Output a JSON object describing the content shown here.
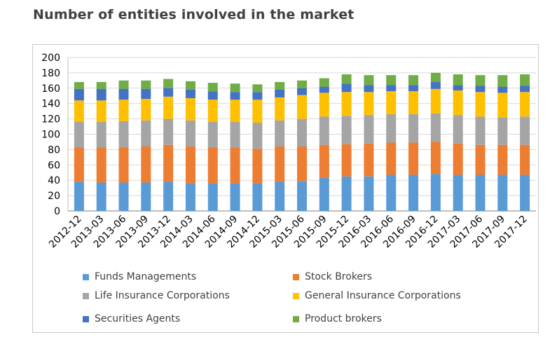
{
  "title": "Number of entities involved in the market",
  "chart_data": {
    "type": "bar",
    "stacked": true,
    "categories": [
      "2012-12",
      "2013-03",
      "2013-06",
      "2013-09",
      "2013-12",
      "2014-03",
      "2014-06",
      "2014-09",
      "2014-12",
      "2015-03",
      "2015-06",
      "2015-09",
      "2015-12",
      "2016-03",
      "2016-06",
      "2016-09",
      "2016-12",
      "2017-03",
      "2017-06",
      "2017-09",
      "2017-12"
    ],
    "ylim": [
      0,
      200
    ],
    "yticks": [
      0,
      20,
      40,
      60,
      80,
      100,
      120,
      140,
      160,
      180,
      200
    ],
    "grid": true,
    "legend_position": "bottom",
    "series": [
      {
        "name": "Funds Managements",
        "color": "#5b9bd5",
        "values": [
          38,
          37,
          37,
          37,
          38,
          36,
          36,
          36,
          36,
          38,
          39,
          43,
          45,
          45,
          47,
          47,
          48,
          47,
          47,
          47,
          47
        ]
      },
      {
        "name": "Stock Brokers",
        "color": "#ed7d31",
        "values": [
          45,
          46,
          46,
          47,
          48,
          48,
          47,
          47,
          45,
          46,
          45,
          43,
          42,
          43,
          42,
          42,
          42,
          41,
          39,
          39,
          39
        ]
      },
      {
        "name": "Life Insurance Corporations",
        "color": "#a5a5a5",
        "values": [
          33,
          33,
          34,
          34,
          34,
          34,
          33,
          33,
          34,
          34,
          36,
          37,
          37,
          37,
          37,
          37,
          37,
          37,
          37,
          36,
          37
        ]
      },
      {
        "name": "General Insurance Corporations",
        "color": "#ffc000",
        "values": [
          28,
          28,
          28,
          28,
          29,
          29,
          29,
          29,
          30,
          30,
          31,
          31,
          31,
          30,
          30,
          30,
          32,
          32,
          32,
          32,
          32
        ]
      },
      {
        "name": "Securities Agents",
        "color": "#4472c4",
        "values": [
          15,
          15,
          14,
          13,
          11,
          11,
          11,
          10,
          10,
          10,
          9,
          8,
          11,
          9,
          8,
          8,
          9,
          7,
          8,
          8,
          8
        ]
      },
      {
        "name": "Product brokers",
        "color": "#70ad47",
        "values": [
          9,
          9,
          11,
          11,
          12,
          11,
          11,
          11,
          10,
          10,
          10,
          11,
          12,
          13,
          13,
          13,
          12,
          14,
          14,
          15,
          15
        ]
      }
    ]
  }
}
